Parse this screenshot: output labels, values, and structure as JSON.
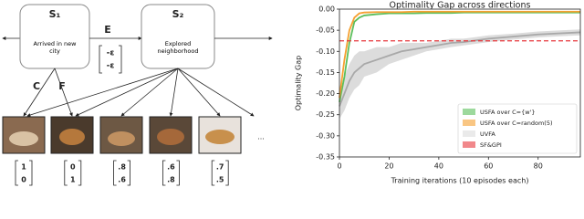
{
  "diagram": {
    "state1": {
      "label": "S₁",
      "caption": "Arrived in new city"
    },
    "state2": {
      "label": "S₂",
      "caption": "Explored neighborhood"
    },
    "edge": {
      "label": "E",
      "vector": [
        "-ε",
        "-ε"
      ]
    },
    "fan_labels": [
      "C",
      "F"
    ],
    "vectors": [
      [
        "1",
        "0"
      ],
      [
        "0",
        "1"
      ],
      [
        ".8",
        ".6"
      ],
      [
        ".6",
        ".8"
      ],
      [
        ".7",
        ".5"
      ]
    ],
    "ellipsis": "..."
  },
  "chart_data": {
    "type": "line",
    "title": "Optimality Gap across directions",
    "xlabel": "Training iterations (10 episodes each)",
    "ylabel": "Optimality Gap",
    "x": [
      0,
      2,
      4,
      6,
      8,
      10,
      15,
      20,
      25,
      30,
      35,
      40,
      45,
      50,
      60,
      70,
      80,
      90,
      97
    ],
    "xlim": [
      0,
      97
    ],
    "xticks": [
      0,
      20,
      40,
      60,
      80
    ],
    "ylim": [
      -0.35,
      0
    ],
    "yticks": [
      {
        "value": 0,
        "label": "0.00"
      },
      -0.05,
      {
        "value": -0.1,
        "label": "-0.10"
      },
      -0.15,
      {
        "value": -0.2,
        "label": "-0.20"
      },
      -0.25,
      {
        "value": -0.3,
        "label": "-0.30"
      },
      -0.35
    ],
    "legend": "lower right",
    "series": [
      {
        "name": "USFA over C={w'}",
        "color": "#5cbf5c",
        "values": [
          -0.22,
          -0.16,
          -0.08,
          -0.03,
          -0.02,
          -0.015,
          -0.012,
          -0.01,
          -0.01,
          -0.01,
          -0.009,
          -0.009,
          -0.009,
          -0.008,
          -0.008,
          -0.008,
          -0.008,
          -0.008,
          -0.008
        ]
      },
      {
        "name": "USFA over C=random(5)",
        "color": "#f5a030",
        "values": [
          -0.21,
          -0.12,
          -0.05,
          -0.02,
          -0.01,
          -0.008,
          -0.007,
          -0.007,
          -0.007,
          -0.006,
          -0.006,
          -0.006,
          -0.006,
          -0.006,
          -0.006,
          -0.006,
          -0.006,
          -0.006,
          -0.006
        ]
      },
      {
        "name": "UVFA",
        "color": "#a8a8a8",
        "band_color": "#dcdcdc",
        "values": [
          -0.23,
          -0.2,
          -0.17,
          -0.15,
          -0.14,
          -0.13,
          -0.12,
          -0.11,
          -0.1,
          -0.095,
          -0.09,
          -0.085,
          -0.08,
          -0.078,
          -0.07,
          -0.065,
          -0.06,
          -0.057,
          -0.055
        ],
        "lower": [
          -0.26,
          -0.24,
          -0.21,
          -0.19,
          -0.18,
          -0.16,
          -0.15,
          -0.13,
          -0.12,
          -0.11,
          -0.1,
          -0.095,
          -0.09,
          -0.086,
          -0.078,
          -0.072,
          -0.067,
          -0.064,
          -0.062
        ],
        "upper": [
          -0.2,
          -0.16,
          -0.13,
          -0.11,
          -0.1,
          -0.1,
          -0.09,
          -0.09,
          -0.08,
          -0.08,
          -0.08,
          -0.075,
          -0.07,
          -0.07,
          -0.062,
          -0.058,
          -0.053,
          -0.05,
          -0.048
        ]
      }
    ],
    "hlines": [
      {
        "name": "SF&GPI",
        "color": "#e8383d",
        "value": -0.075
      }
    ]
  }
}
